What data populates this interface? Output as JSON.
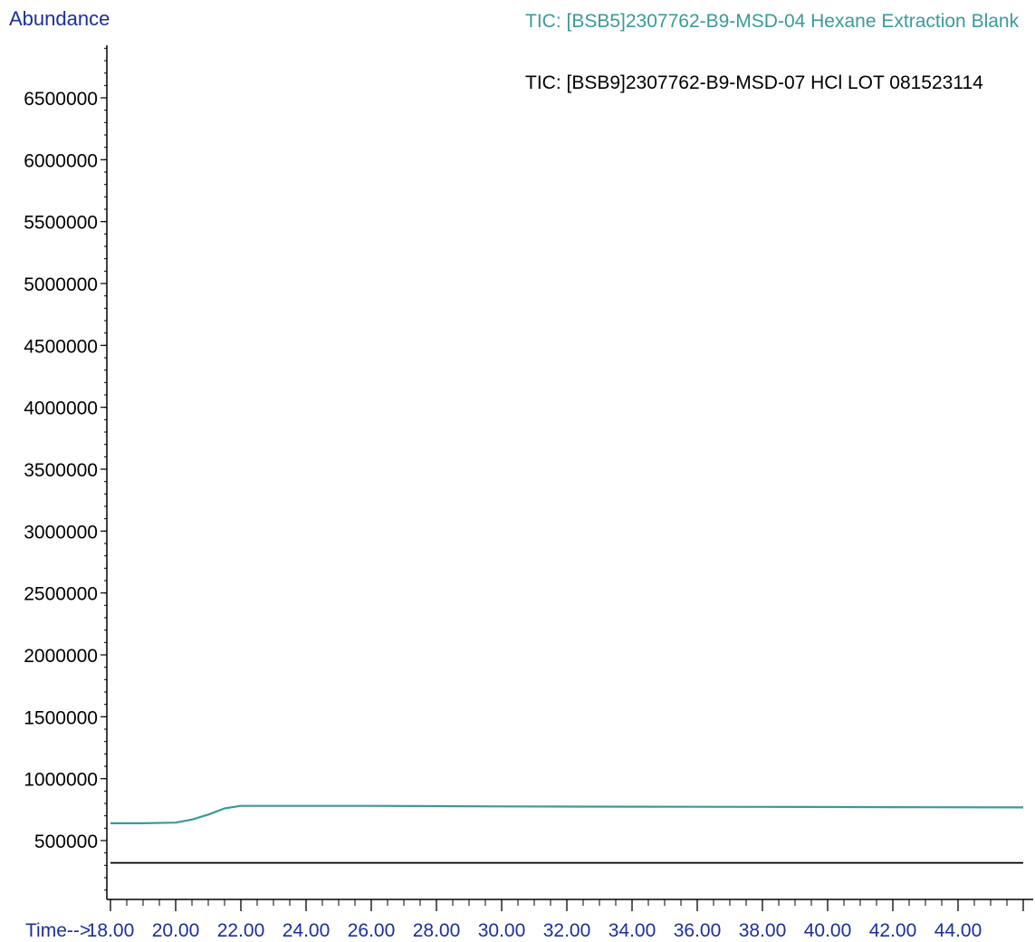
{
  "chart_data": {
    "type": "line",
    "ylabel": "Abundance",
    "xlabel": "Time-->",
    "xlim": [
      18.0,
      46.0
    ],
    "ylim": [
      0,
      6900000
    ],
    "x_ticks": [
      18,
      20,
      22,
      24,
      26,
      28,
      30,
      32,
      34,
      36,
      38,
      40,
      42,
      44
    ],
    "x_tick_labels": [
      "18.00",
      "20.00",
      "22.00",
      "24.00",
      "26.00",
      "28.00",
      "30.00",
      "32.00",
      "34.00",
      "36.00",
      "38.00",
      "40.00",
      "42.00",
      "44.00"
    ],
    "y_ticks": [
      500000,
      1000000,
      1500000,
      2000000,
      2500000,
      3000000,
      3500000,
      4000000,
      4500000,
      5000000,
      5500000,
      6000000,
      6500000
    ],
    "y_tick_labels": [
      "500000",
      "1000000",
      "1500000",
      "2000000",
      "2500000",
      "3000000",
      "3500000",
      "4000000",
      "4500000",
      "5000000",
      "5500000",
      "6000000",
      "6500000"
    ],
    "grid": false,
    "legend_position": "top-right",
    "series": [
      {
        "name": "TIC: [BSB5]2307762-B9-MSD-04 Hexane Extraction Blank",
        "color": "#3a9a9a",
        "x": [
          18.0,
          19.0,
          20.0,
          20.5,
          21.0,
          21.5,
          22.0,
          24.0,
          26.0,
          28.0,
          30.0,
          34.0,
          38.0,
          42.0,
          46.0
        ],
        "y": [
          640000,
          640000,
          645000,
          670000,
          710000,
          760000,
          780000,
          780000,
          780000,
          778000,
          776000,
          774000,
          772000,
          770000,
          768000
        ]
      },
      {
        "name": "TIC: [BSB9]2307762-B9-MSD-07 HCl LOT 081523114",
        "color": "#000000",
        "x": [
          18.0,
          22.0,
          26.0,
          30.0,
          34.0,
          38.0,
          42.0,
          46.0
        ],
        "y": [
          320000,
          320000,
          320000,
          320000,
          320000,
          320000,
          320000,
          320000
        ]
      }
    ]
  },
  "legend": {
    "entry1": "TIC: [BSB5]2307762-B9-MSD-04 Hexane Extraction Blank",
    "entry2": "TIC: [BSB9]2307762-B9-MSD-07 HCl LOT 081523114"
  },
  "colors": {
    "axis": "#000000",
    "label_blue": "#1a2f9e",
    "teal": "#3a9a9a"
  }
}
